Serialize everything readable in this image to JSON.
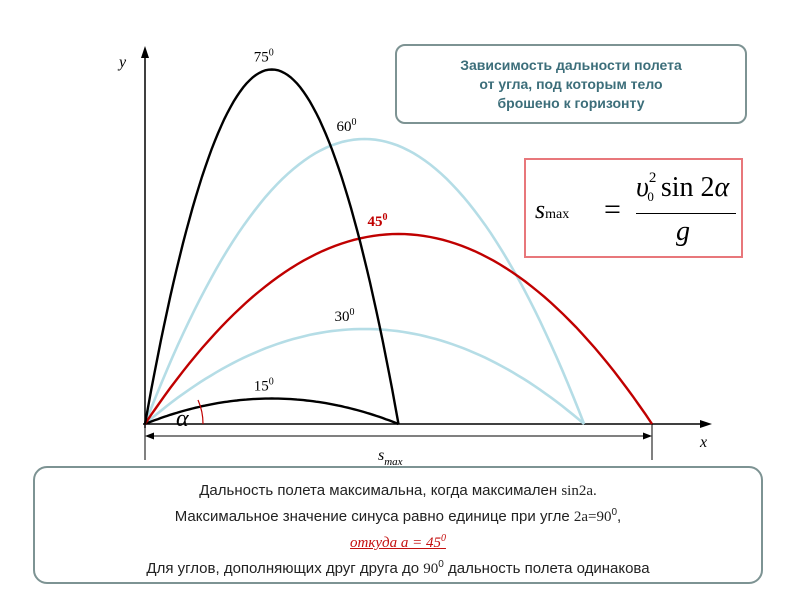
{
  "header": {
    "line1": "Зависимость дальности полета",
    "line2": "от угла, под которым тело",
    "line3": "брошено к горизонту"
  },
  "formula": {
    "lhs": "s",
    "lhs_sub": "max",
    "eq": "=",
    "num_v": "υ",
    "num_sup": "2",
    "num_sub": "0",
    "num_sin": "sin 2",
    "num_alpha": "α",
    "den": "g"
  },
  "chart_data": {
    "type": "line",
    "xlabel": "x",
    "ylabel": "y",
    "angle_label": "α",
    "range_label": "s",
    "range_label_sub": "max",
    "series": [
      {
        "angle": "75",
        "deg": "0",
        "angle_deg": 75,
        "range": 0.5,
        "max_height": 0.933,
        "color": "#000000"
      },
      {
        "angle": "60",
        "deg": "0",
        "angle_deg": 60,
        "range": 0.866,
        "max_height": 0.75,
        "color": "#b5dde6"
      },
      {
        "angle": "45",
        "deg": "0",
        "angle_deg": 45,
        "range": 1.0,
        "max_height": 0.5,
        "color": "#c00000"
      },
      {
        "angle": "30",
        "deg": "0",
        "angle_deg": 30,
        "range": 0.866,
        "max_height": 0.25,
        "color": "#b5dde6"
      },
      {
        "angle": "15",
        "deg": "0",
        "angle_deg": 15,
        "range": 0.5,
        "max_height": 0.067,
        "color": "#000000"
      }
    ],
    "grid": false
  },
  "bottom": {
    "line1_a": "Дальность полета максимальна, когда максимален ",
    "line1_b": "sin2a.",
    "line2_a": "Максимальное значение синуса равно единице при угле ",
    "line2_b": "2a=90",
    "line2_sup": "0",
    "line2_c": ",",
    "line3": "откуда   a = 45",
    "line3_sup": "0",
    "line4_a": "Для углов, дополняющих друг друга до ",
    "line4_b": "90",
    "line4_sup": "0",
    "line4_c": " дальность полета одинакова"
  }
}
